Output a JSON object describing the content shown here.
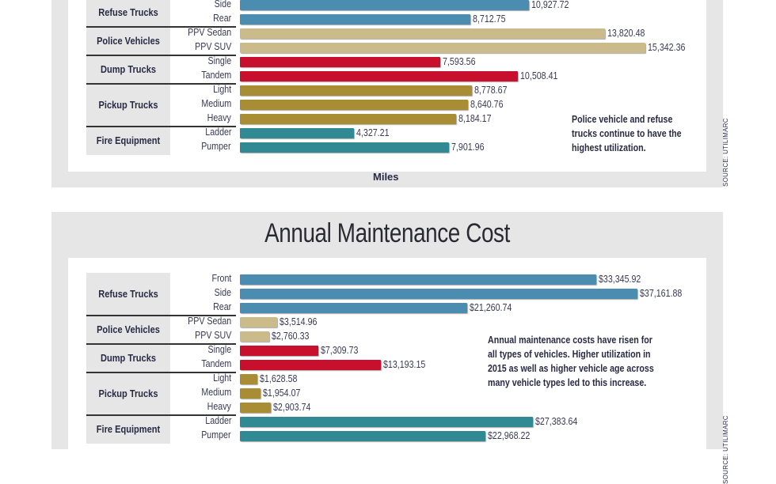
{
  "chart_data": [
    {
      "type": "bar",
      "orientation": "horizontal",
      "title": "",
      "xlabel": "Miles",
      "ylabel": "",
      "xlim": [
        0,
        16000
      ],
      "grid": false,
      "note": [
        "Police vehicle and refuse",
        "trucks continue to have the",
        "highest utilization."
      ],
      "groups": [
        {
          "name": "Refuse Trucks",
          "color": "#4a8db0",
          "items": [
            {
              "label": "Side",
              "value": 10927.72,
              "text": "10,927.72"
            },
            {
              "label": "Rear",
              "value": 8712.75,
              "text": "8,712.75"
            }
          ]
        },
        {
          "name": "Police Vehicles",
          "color": "#cbbb8a",
          "items": [
            {
              "label": "PPV Sedan",
              "value": 13820.48,
              "text": "13,820.48"
            },
            {
              "label": "PPV SUV",
              "value": 15342.36,
              "text": "15,342.36"
            }
          ]
        },
        {
          "name": "Dump Trucks",
          "color": "#c8102e",
          "items": [
            {
              "label": "Single",
              "value": 7593.56,
              "text": "7,593.56"
            },
            {
              "label": "Tandem",
              "value": 10508.41,
              "text": "10,508.41"
            }
          ]
        },
        {
          "name": "Pickup Trucks",
          "color": "#a88d35",
          "items": [
            {
              "label": "Light",
              "value": 8778.67,
              "text": "8,778.67"
            },
            {
              "label": "Medium",
              "value": 8640.76,
              "text": "8,640.76"
            },
            {
              "label": "Heavy",
              "value": 8184.17,
              "text": "8,184.17"
            }
          ]
        },
        {
          "name": "Fire Equipment",
          "color": "#318a93",
          "items": [
            {
              "label": "Ladder",
              "value": 4327.21,
              "text": "4,327.21"
            },
            {
              "label": "Pumper",
              "value": 7901.96,
              "text": "7,901.96"
            }
          ]
        }
      ]
    },
    {
      "type": "bar",
      "orientation": "horizontal",
      "title": "Annual Maintenance Cost",
      "xlabel": "",
      "ylabel": "",
      "xlim": [
        0,
        40000
      ],
      "grid": false,
      "note": [
        "Annual maintenance costs have risen for",
        "all types of vehicles. Higher utilization in",
        "2015 as well as higher vehicle age across",
        "many vehicle types led to this increase."
      ],
      "groups": [
        {
          "name": "Refuse Trucks",
          "color": "#4a8db0",
          "items": [
            {
              "label": "Front",
              "value": 33345.92,
              "text": "$33,345.92"
            },
            {
              "label": "Side",
              "value": 37161.88,
              "text": "$37,161.88"
            },
            {
              "label": "Rear",
              "value": 21260.74,
              "text": "$21,260.74"
            }
          ]
        },
        {
          "name": "Police Vehicles",
          "color": "#cbbb8a",
          "items": [
            {
              "label": "PPV Sedan",
              "value": 3514.96,
              "text": "$3,514.96"
            },
            {
              "label": "PPV SUV",
              "value": 2760.33,
              "text": "$2,760.33"
            }
          ]
        },
        {
          "name": "Dump Trucks",
          "color": "#c8102e",
          "items": [
            {
              "label": "Single",
              "value": 7309.73,
              "text": "$7,309.73"
            },
            {
              "label": "Tandem",
              "value": 13193.15,
              "text": "$13,193.15"
            }
          ]
        },
        {
          "name": "Pickup Trucks",
          "color": "#a88d35",
          "items": [
            {
              "label": "Light",
              "value": 1628.58,
              "text": "$1,628.58"
            },
            {
              "label": "Medium",
              "value": 1954.07,
              "text": "$1,954.07"
            },
            {
              "label": "Heavy",
              "value": 2903.74,
              "text": "$2,903.74"
            }
          ]
        },
        {
          "name": "Fire Equipment",
          "color": "#318a93",
          "items": [
            {
              "label": "Ladder",
              "value": 27383.64,
              "text": "$27,383.64"
            },
            {
              "label": "Pumper",
              "value": 22968.22,
              "text": "$22,968.22"
            }
          ]
        }
      ]
    }
  ],
  "source": "SOURCE: UTILIMARC"
}
